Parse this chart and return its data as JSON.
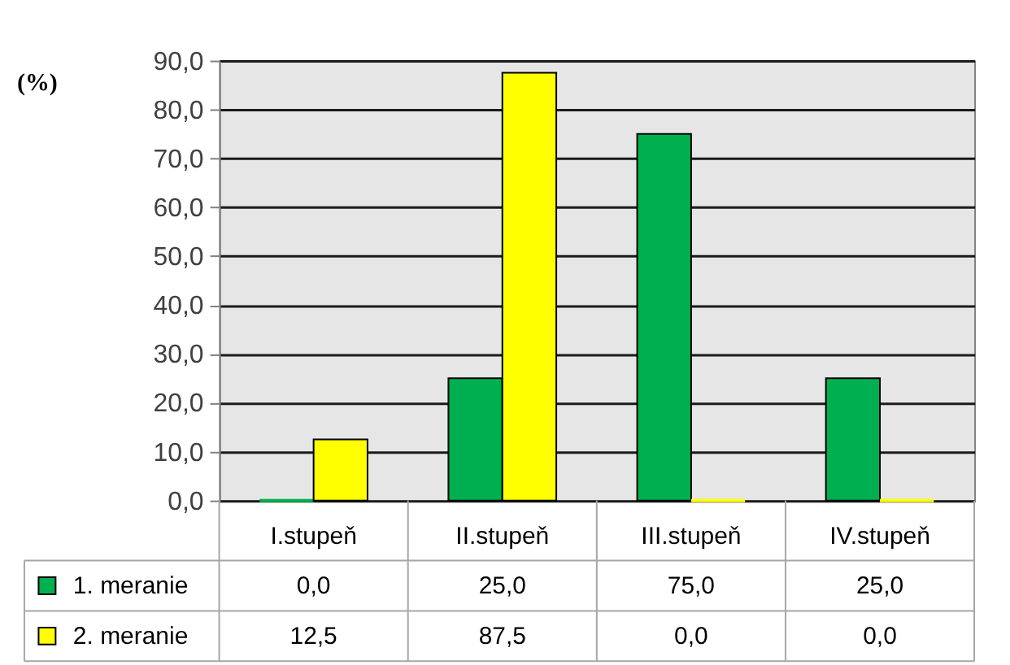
{
  "chart_data": {
    "type": "bar",
    "ylabel": "(%)",
    "categories": [
      "I.stupeň",
      "II.stupeň",
      "III.stupeň",
      "IV.stupeň"
    ],
    "series": [
      {
        "name": "1. meranie",
        "color": "#00b050",
        "values": [
          0,
          25,
          75,
          25
        ],
        "value_labels": [
          "0,0",
          "25,0",
          "75,0",
          "25,0"
        ]
      },
      {
        "name": "2. meranie",
        "color": "#ffff00",
        "values": [
          12.5,
          87.5,
          0,
          0
        ],
        "value_labels": [
          "12,5",
          "87,5",
          "0,0",
          "0,0"
        ]
      }
    ],
    "ylim": [
      0,
      90
    ],
    "yticks": [
      {
        "value": 0,
        "label": "0,0"
      },
      {
        "value": 10,
        "label": "10,0"
      },
      {
        "value": 20,
        "label": "20,0"
      },
      {
        "value": 30,
        "label": "30,0"
      },
      {
        "value": 40,
        "label": "40,0"
      },
      {
        "value": 50,
        "label": "50,0"
      },
      {
        "value": 60,
        "label": "60,0"
      },
      {
        "value": 70,
        "label": "70,0"
      },
      {
        "value": 80,
        "label": "80,0"
      },
      {
        "value": 90,
        "label": "90,0"
      }
    ],
    "grid": "y",
    "legend": "bottom left"
  }
}
